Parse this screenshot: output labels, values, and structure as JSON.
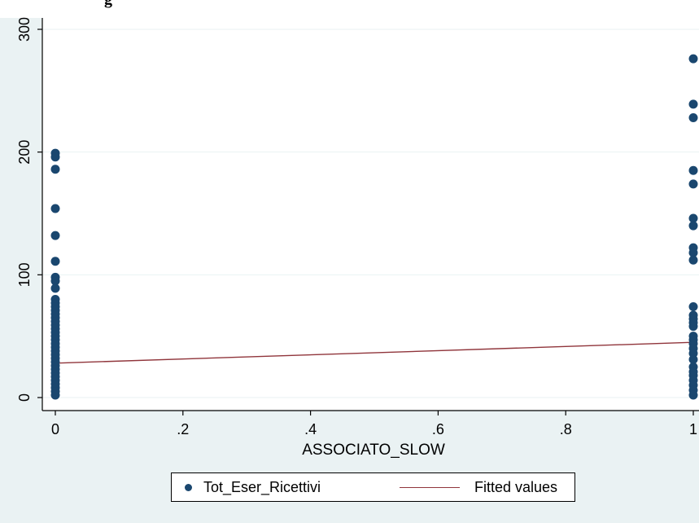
{
  "header_partial_text": "g",
  "chart_data": {
    "type": "scatter",
    "xlabel": "ASSOCIATO_SLOW",
    "ylabel": "",
    "xlim": [
      0,
      1
    ],
    "ylim": [
      0,
      300
    ],
    "x_ticks": [
      "0",
      ".2",
      ".4",
      ".6",
      ".8",
      "1"
    ],
    "y_ticks": [
      "0",
      "100",
      "200",
      "300"
    ],
    "grid": "horizontal",
    "legend_position": "bottom",
    "colors": {
      "points": "#1a476f",
      "fit_line": "#90353b",
      "background": "#eaf2f3",
      "plot": "#ffffff"
    },
    "series": [
      {
        "name": "Tot_Eser_Ricettivi",
        "kind": "scatter",
        "points": [
          [
            0,
            199
          ],
          [
            0,
            196
          ],
          [
            0,
            186
          ],
          [
            0,
            154
          ],
          [
            0,
            132
          ],
          [
            0,
            111
          ],
          [
            0,
            98
          ],
          [
            0,
            95
          ],
          [
            0,
            89
          ],
          [
            0,
            80
          ],
          [
            0,
            77
          ],
          [
            0,
            74
          ],
          [
            0,
            71
          ],
          [
            0,
            68
          ],
          [
            0,
            65
          ],
          [
            0,
            62
          ],
          [
            0,
            59
          ],
          [
            0,
            56
          ],
          [
            0,
            53
          ],
          [
            0,
            50
          ],
          [
            0,
            47
          ],
          [
            0,
            44
          ],
          [
            0,
            41
          ],
          [
            0,
            38
          ],
          [
            0,
            35
          ],
          [
            0,
            32
          ],
          [
            0,
            29
          ],
          [
            0,
            26
          ],
          [
            0,
            23
          ],
          [
            0,
            20
          ],
          [
            0,
            17
          ],
          [
            0,
            14
          ],
          [
            0,
            11
          ],
          [
            0,
            8
          ],
          [
            0,
            5
          ],
          [
            0,
            2
          ],
          [
            1,
            276
          ],
          [
            1,
            239
          ],
          [
            1,
            228
          ],
          [
            1,
            185
          ],
          [
            1,
            174
          ],
          [
            1,
            146
          ],
          [
            1,
            140
          ],
          [
            1,
            122
          ],
          [
            1,
            118
          ],
          [
            1,
            112
          ],
          [
            1,
            74
          ],
          [
            1,
            67
          ],
          [
            1,
            64
          ],
          [
            1,
            61
          ],
          [
            1,
            58
          ],
          [
            1,
            50
          ],
          [
            1,
            47
          ],
          [
            1,
            44
          ],
          [
            1,
            40
          ],
          [
            1,
            36
          ],
          [
            1,
            31
          ],
          [
            1,
            25
          ],
          [
            1,
            21
          ],
          [
            1,
            18
          ],
          [
            1,
            14
          ],
          [
            1,
            10
          ],
          [
            1,
            6
          ],
          [
            1,
            2
          ]
        ]
      },
      {
        "name": "Fitted values",
        "kind": "line",
        "points": [
          [
            0,
            28
          ],
          [
            1,
            45
          ]
        ]
      }
    ]
  }
}
